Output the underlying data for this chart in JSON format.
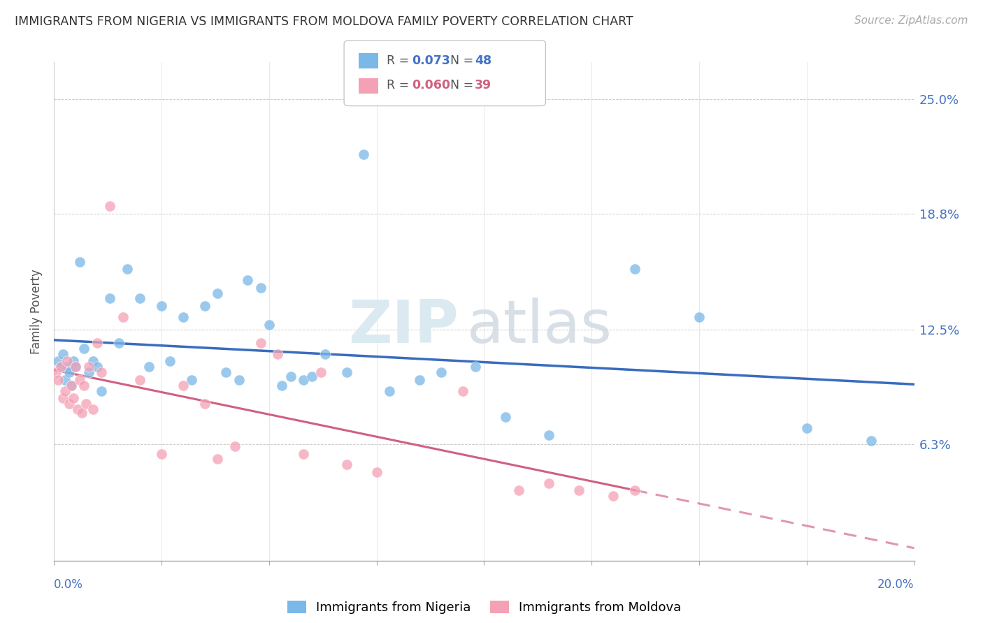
{
  "title": "IMMIGRANTS FROM NIGERIA VS IMMIGRANTS FROM MOLDOVA FAMILY POVERTY CORRELATION CHART",
  "source": "Source: ZipAtlas.com",
  "ylabel": "Family Poverty",
  "ytick_values": [
    6.3,
    12.5,
    18.8,
    25.0
  ],
  "ytick_labels": [
    "6.3%",
    "12.5%",
    "18.8%",
    "25.0%"
  ],
  "xlim": [
    0.0,
    20.0
  ],
  "ylim": [
    0.0,
    27.0
  ],
  "watermark_zip": "ZIP",
  "watermark_atlas": "atlas",
  "color_nigeria": "#7ab8e8",
  "color_moldova": "#f4a0b5",
  "line_color_nigeria": "#3a6cbf",
  "line_color_moldova": "#d06080",
  "nigeria_r": "0.073",
  "nigeria_n": "48",
  "moldova_r": "0.060",
  "moldova_n": "39",
  "nigeria_x": [
    0.1,
    0.15,
    0.2,
    0.25,
    0.3,
    0.35,
    0.4,
    0.45,
    0.5,
    0.6,
    0.7,
    0.8,
    0.9,
    1.0,
    1.1,
    1.3,
    1.5,
    1.7,
    2.0,
    2.2,
    2.5,
    2.7,
    3.0,
    3.2,
    3.5,
    3.8,
    4.0,
    4.3,
    4.5,
    4.8,
    5.0,
    5.3,
    5.5,
    5.8,
    6.0,
    6.3,
    6.8,
    7.2,
    7.8,
    8.5,
    9.0,
    9.8,
    10.5,
    11.5,
    13.5,
    15.0,
    17.5,
    19.0
  ],
  "nigeria_y": [
    10.8,
    10.5,
    11.2,
    9.8,
    10.5,
    10.2,
    9.5,
    10.8,
    10.5,
    16.2,
    11.5,
    10.2,
    10.8,
    10.5,
    9.2,
    14.2,
    11.8,
    15.8,
    14.2,
    10.5,
    13.8,
    10.8,
    13.2,
    9.8,
    13.8,
    14.5,
    10.2,
    9.8,
    15.2,
    14.8,
    12.8,
    9.5,
    10.0,
    9.8,
    10.0,
    11.2,
    10.2,
    22.0,
    9.2,
    9.8,
    10.2,
    10.5,
    7.8,
    6.8,
    15.8,
    13.2,
    7.2,
    6.5
  ],
  "moldova_x": [
    0.05,
    0.1,
    0.15,
    0.2,
    0.25,
    0.3,
    0.35,
    0.4,
    0.45,
    0.5,
    0.55,
    0.6,
    0.65,
    0.7,
    0.75,
    0.8,
    0.9,
    1.0,
    1.1,
    1.3,
    1.6,
    2.0,
    2.5,
    3.0,
    3.5,
    3.8,
    4.2,
    4.8,
    5.2,
    5.8,
    6.2,
    6.8,
    7.5,
    9.5,
    10.8,
    11.5,
    12.2,
    13.0,
    13.5
  ],
  "moldova_y": [
    10.2,
    9.8,
    10.5,
    8.8,
    9.2,
    10.8,
    8.5,
    9.5,
    8.8,
    10.5,
    8.2,
    9.8,
    8.0,
    9.5,
    8.5,
    10.5,
    8.2,
    11.8,
    10.2,
    19.2,
    13.2,
    9.8,
    5.8,
    9.5,
    8.5,
    5.5,
    6.2,
    11.8,
    11.2,
    5.8,
    10.2,
    5.2,
    4.8,
    9.2,
    3.8,
    4.2,
    3.8,
    3.5,
    3.8
  ]
}
